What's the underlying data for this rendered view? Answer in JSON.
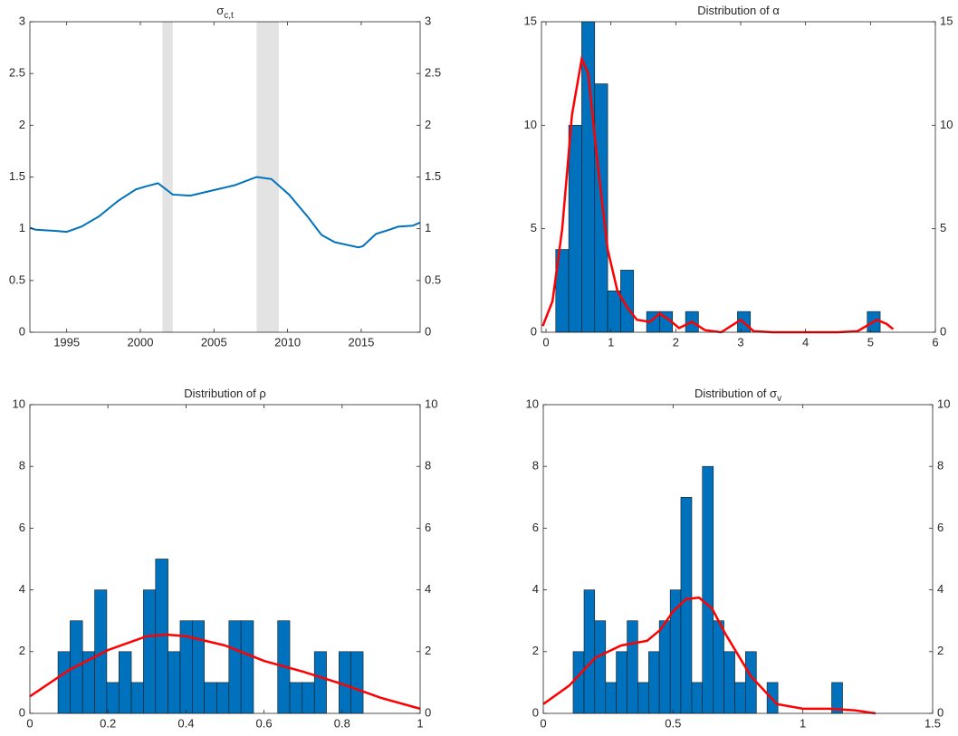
{
  "chart_data": [
    {
      "type": "line",
      "title": "σ",
      "title_subscript": "c,t",
      "color": "#0072bd",
      "x": [
        1992.5,
        1992.9,
        1994.2,
        1995.0,
        1996.0,
        1997.2,
        1998.5,
        1999.7,
        2000.4,
        2001.2,
        2002.2,
        2003.4,
        2004.6,
        2006.4,
        2007.9,
        2008.9,
        2010.1,
        2011.4,
        2012.3,
        2013.2,
        2014.8,
        2015.1,
        2016.0,
        2016.9,
        2017.5,
        2018.5,
        2019.0
      ],
      "values": [
        1.01,
        0.99,
        0.98,
        0.97,
        1.02,
        1.12,
        1.27,
        1.38,
        1.41,
        1.44,
        1.33,
        1.32,
        1.36,
        1.42,
        1.5,
        1.48,
        1.33,
        1.11,
        0.94,
        0.87,
        0.82,
        0.83,
        0.95,
        0.99,
        1.02,
        1.03,
        1.06
      ],
      "shaded_periods": [
        [
          2001.5,
          2002.2
        ],
        [
          2007.9,
          2009.4
        ]
      ],
      "shade_color": "#e3e3e3",
      "xlim": [
        1992.5,
        2019.0
      ],
      "xticks": [
        1995,
        2000,
        2005,
        2010,
        2015
      ],
      "ylim": [
        0,
        3
      ],
      "yticks": [
        0,
        0.5,
        1,
        1.5,
        2,
        2.5,
        3
      ],
      "y2lim": [
        0,
        3
      ],
      "y2ticks": [
        0,
        0.5,
        1,
        1.5,
        2,
        2.5,
        3
      ]
    },
    {
      "type": "histogram",
      "title": "Distribution of α",
      "color": "#0072bd",
      "bins": [
        0.15,
        0.35,
        0.55,
        0.75,
        0.95,
        1.15,
        1.35,
        1.55,
        1.75,
        1.95,
        2.15,
        2.35,
        2.55,
        2.75,
        2.95,
        3.15,
        3.35,
        3.55,
        3.75,
        3.95,
        4.15,
        4.35,
        4.55,
        4.75,
        4.95,
        5.15
      ],
      "values": [
        4,
        10,
        15,
        12,
        2,
        3,
        0,
        1,
        1,
        0,
        1,
        0,
        0,
        0,
        1,
        0,
        0,
        0,
        0,
        0,
        0,
        0,
        0,
        0,
        1
      ],
      "curve": {
        "color": "#ff0000",
        "x": [
          -0.05,
          0.1,
          0.25,
          0.4,
          0.55,
          0.65,
          0.8,
          0.95,
          1.1,
          1.25,
          1.4,
          1.6,
          1.75,
          1.9,
          2.05,
          2.25,
          2.45,
          2.7,
          3.0,
          3.2,
          3.5,
          4.5,
          4.8,
          5.1,
          5.25,
          5.35
        ],
        "values": [
          0.3,
          1.5,
          5,
          10.5,
          13.2,
          12.5,
          8,
          4,
          2,
          1.2,
          0.6,
          0.5,
          0.9,
          0.6,
          0.2,
          0.5,
          0.1,
          0,
          0.6,
          0.05,
          0,
          0,
          0.05,
          0.6,
          0.4,
          0.15
        ]
      },
      "xlim": [
        -0.07,
        6
      ],
      "xticks": [
        0,
        1,
        2,
        3,
        4,
        5,
        6
      ],
      "ylim": [
        0,
        15
      ],
      "yticks": [
        0,
        5,
        10,
        15
      ],
      "y2lim": [
        0,
        15
      ],
      "y2ticks": [
        0,
        5,
        10,
        15
      ]
    },
    {
      "type": "histogram",
      "title": "Distribution of ρ",
      "color": "#0072bd",
      "bins": [
        0.072,
        0.103,
        0.135,
        0.166,
        0.197,
        0.228,
        0.26,
        0.291,
        0.322,
        0.354,
        0.385,
        0.416,
        0.447,
        0.479,
        0.51,
        0.541,
        0.573,
        0.604,
        0.635,
        0.666,
        0.698,
        0.729,
        0.76,
        0.792,
        0.823,
        0.854
      ],
      "values": [
        2,
        3,
        2,
        4,
        1,
        2,
        1,
        4,
        5,
        2,
        3,
        3,
        1,
        1,
        3,
        3,
        0,
        0,
        3,
        1,
        1,
        2,
        0,
        2,
        2
      ],
      "curve": {
        "color": "#ff0000",
        "x": [
          0,
          0.1,
          0.2,
          0.3,
          0.35,
          0.4,
          0.5,
          0.6,
          0.7,
          0.8,
          0.9,
          1.0
        ],
        "values": [
          0.55,
          1.4,
          2.05,
          2.5,
          2.55,
          2.5,
          2.2,
          1.7,
          1.35,
          0.95,
          0.5,
          0.15
        ]
      },
      "xlim": [
        0,
        1
      ],
      "xticks": [
        0,
        0.2,
        0.4,
        0.6,
        0.8,
        1
      ],
      "ylim": [
        0,
        10
      ],
      "yticks": [
        0,
        2,
        4,
        6,
        8,
        10
      ],
      "y2lim": [
        0,
        10
      ],
      "y2ticks": [
        0,
        2,
        4,
        6,
        8,
        10
      ]
    },
    {
      "type": "histogram",
      "title": "Distribution of σ",
      "title_subscript": "v",
      "color": "#0072bd",
      "bins": [
        0.115,
        0.157,
        0.198,
        0.24,
        0.281,
        0.323,
        0.364,
        0.406,
        0.447,
        0.489,
        0.53,
        0.572,
        0.613,
        0.655,
        0.696,
        0.738,
        0.779,
        0.821,
        0.862,
        0.904,
        0.945,
        0.987,
        1.028,
        1.07,
        1.111,
        1.153
      ],
      "values": [
        2,
        4,
        3,
        1,
        2,
        3,
        1,
        2,
        3,
        4,
        7,
        1,
        8,
        3,
        2,
        1,
        2,
        0,
        1,
        0,
        0,
        0,
        0,
        0,
        1
      ],
      "curve": {
        "color": "#ff0000",
        "x": [
          0,
          0.1,
          0.2,
          0.3,
          0.4,
          0.45,
          0.5,
          0.55,
          0.6,
          0.65,
          0.7,
          0.8,
          0.9,
          1.0,
          1.1,
          1.2,
          1.28
        ],
        "values": [
          0.3,
          0.9,
          1.8,
          2.2,
          2.35,
          2.7,
          3.3,
          3.7,
          3.75,
          3.4,
          2.6,
          1.2,
          0.3,
          0.15,
          0.15,
          0.1,
          0
        ]
      },
      "xlim": [
        0,
        1.5
      ],
      "xticks": [
        0,
        0.5,
        1,
        1.5
      ],
      "ylim": [
        0,
        10
      ],
      "yticks": [
        0,
        2,
        4,
        6,
        8,
        10
      ],
      "y2lim": [
        0,
        10
      ],
      "y2ticks": [
        0,
        2,
        4,
        6,
        8,
        10
      ]
    }
  ]
}
